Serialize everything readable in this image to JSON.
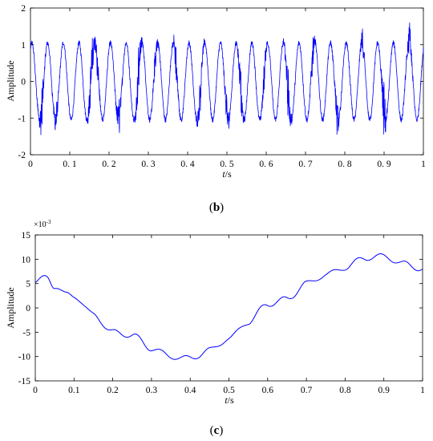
{
  "chart_data": [
    {
      "type": "line",
      "panel_label": {
        "open": "(",
        "letter": "b",
        "close": ")"
      },
      "title": "",
      "xlabel": {
        "main": "t",
        "suffix": "/s"
      },
      "ylabel": "Amplitude",
      "xlim": [
        0,
        1
      ],
      "ylim": [
        -2,
        2
      ],
      "xticks": [
        0,
        0.1,
        0.2,
        0.3,
        0.4,
        0.5,
        0.6,
        0.7,
        0.8,
        0.9,
        1
      ],
      "xtick_labels": [
        "0",
        "0. 1",
        "0. 2",
        "0. 3",
        "0. 4",
        "0. 5",
        "0. 6",
        "0. 7",
        "0. 8",
        "0. 9",
        "1"
      ],
      "yticks": [
        -2,
        -1,
        0,
        1,
        2
      ],
      "ytick_labels": [
        "-2",
        "-1",
        "0",
        "1",
        "2"
      ],
      "grid": false,
      "line_color": "#0000ff",
      "series": [
        {
          "signal": "sine with high-frequency impulsive bursts",
          "base_amplitude": 1.05,
          "base_frequency_hz": 25,
          "noise_level": 0.07,
          "bursts": [
            {
              "t": 0.028,
              "amp": 0.6
            },
            {
              "t": 0.065,
              "amp": 0.4
            },
            {
              "t": 0.155,
              "amp": 0.75
            },
            {
              "t": 0.17,
              "amp": 0.45
            },
            {
              "t": 0.225,
              "amp": 0.5
            },
            {
              "t": 0.275,
              "amp": 0.6
            },
            {
              "t": 0.318,
              "amp": 0.35
            },
            {
              "t": 0.37,
              "amp": 0.45
            },
            {
              "t": 0.432,
              "amp": 0.55
            },
            {
              "t": 0.5,
              "amp": 0.45
            },
            {
              "t": 0.535,
              "amp": 0.5
            },
            {
              "t": 0.595,
              "amp": 0.35
            },
            {
              "t": 0.655,
              "amp": 0.65
            },
            {
              "t": 0.718,
              "amp": 0.4
            },
            {
              "t": 0.78,
              "amp": 0.55
            },
            {
              "t": 0.845,
              "amp": 0.35
            },
            {
              "t": 0.9,
              "amp": 0.75
            },
            {
              "t": 0.965,
              "amp": 0.5
            }
          ]
        }
      ]
    },
    {
      "type": "line",
      "panel_label": {
        "open": "(",
        "letter": "c",
        "close": ")"
      },
      "title": "",
      "scale_note": {
        "base": "×10",
        "exp": "-3"
      },
      "xlabel": {
        "main": "t",
        "suffix": "/s"
      },
      "ylabel": "Amplitude",
      "xlim": [
        0,
        1
      ],
      "ylim": [
        -15,
        15
      ],
      "xticks": [
        0,
        0.1,
        0.2,
        0.3,
        0.4,
        0.5,
        0.6,
        0.7,
        0.8,
        0.9,
        1
      ],
      "xtick_labels": [
        "0",
        "0.1",
        "0.2",
        "0.3",
        "0.4",
        "0.5",
        "0.6",
        "0.7",
        "0.8",
        "0.9",
        "1"
      ],
      "yticks": [
        -15,
        -10,
        -5,
        0,
        5,
        10,
        15
      ],
      "ytick_labels": [
        "-15",
        "-10",
        "-5",
        "0",
        "5",
        "10",
        "15"
      ],
      "grid": false,
      "line_color": "#0000ff",
      "series": [
        {
          "x": [
            0,
            0.03,
            0.05,
            0.08,
            0.1,
            0.15,
            0.2,
            0.25,
            0.3,
            0.35,
            0.4,
            0.45,
            0.5,
            0.55,
            0.6,
            0.65,
            0.7,
            0.75,
            0.8,
            0.85,
            0.9,
            0.95,
            1
          ],
          "y": [
            5.2,
            6.4,
            4.5,
            2.7,
            2.5,
            -1.4,
            -5.0,
            -5.6,
            -8.3,
            -10.0,
            -10.4,
            -8.7,
            -6.3,
            -2.9,
            0.8,
            1.8,
            5.0,
            6.8,
            8.3,
            10.3,
            10.6,
            9.1,
            8.0
          ],
          "ripple_amplitude": 0.55,
          "ripple_frequency_hz": 16
        }
      ]
    }
  ]
}
